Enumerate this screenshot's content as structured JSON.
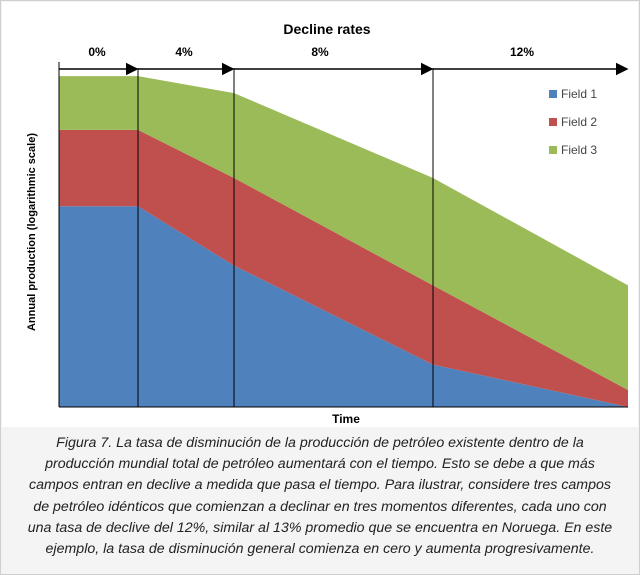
{
  "chart_data": {
    "type": "area",
    "title": "Decline rates",
    "xlabel": "Time",
    "ylabel": "Annual production (logarithmic scale)",
    "phase_labels": [
      "0%",
      "4%",
      "8%",
      "12%"
    ],
    "x": [
      0,
      1,
      2,
      3,
      4
    ],
    "phase_boundaries": [
      0,
      1,
      2,
      3,
      4
    ],
    "legend_position": "top-right",
    "series": [
      {
        "name": "Field 1",
        "color": "#4f81bd",
        "values": [
          0.71,
          0.71,
          0.5,
          0.15,
          0.0
        ]
      },
      {
        "name": "Field 2",
        "color": "#c0504d",
        "values": [
          0.98,
          0.98,
          0.81,
          0.43,
          0.06
        ]
      },
      {
        "name": "Field 3",
        "color": "#9bbb59",
        "values": [
          1.17,
          1.17,
          1.11,
          0.81,
          0.43
        ]
      }
    ]
  },
  "caption": "Figura 7. La tasa de disminución de la producción de petróleo existente dentro de la producción mundial total de petróleo aumentará con el tiempo. Esto se debe a que más campos entran en declive a medida que pasa el tiempo. Para ilustrar, considere tres campos de petróleo idénticos que comienzan a declinar en tres momentos diferentes, cada uno con una tasa de declive del 12%, similar al 13% promedio que se encuentra en Noruega. En este ejemplo, la tasa de disminución general comienza en cero y aumenta progresivamente."
}
